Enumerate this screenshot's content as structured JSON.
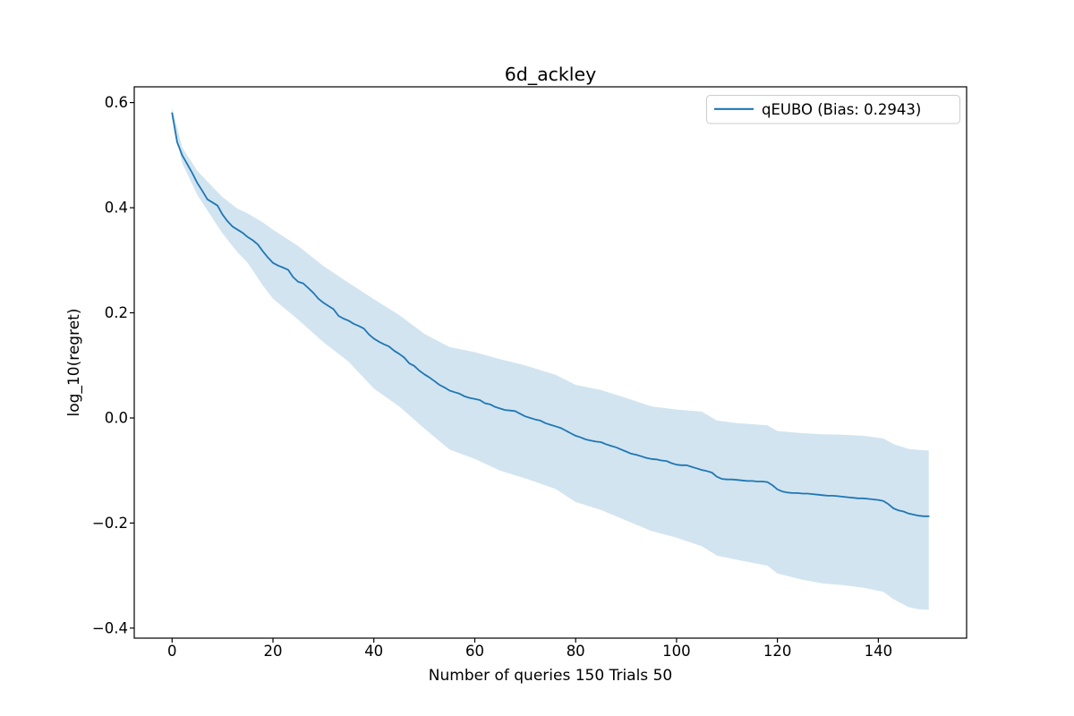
{
  "figure": {
    "title": "6d_ackley",
    "xlabel": "Number of queries 150 Trials 50",
    "ylabel": "log_10(regret)"
  },
  "legend": {
    "position": "upper right",
    "entries": [
      {
        "label": "qEUBO (Bias: 0.2943)",
        "color": "#1f77b4",
        "swatch": "line"
      }
    ]
  },
  "colors": {
    "line": "#1f77b4",
    "band": "rgba(31,119,180,0.2)",
    "frame": "#000000",
    "legend_border": "#cccccc",
    "legend_background": "rgba(255,255,255,0.8)"
  },
  "chart_data": {
    "type": "line",
    "title": "6d_ackley",
    "xlabel": "Number of queries 150 Trials 50",
    "ylabel": "log_10(regret)",
    "xlim": [
      -7.5,
      157.5
    ],
    "ylim": [
      -0.419,
      0.63
    ],
    "grid": false,
    "legend_position": "upper right",
    "xticks": {
      "values": [
        0,
        20,
        40,
        60,
        80,
        100,
        120,
        140
      ],
      "labels": [
        "0",
        "20",
        "40",
        "60",
        "80",
        "100",
        "120",
        "140"
      ]
    },
    "yticks": {
      "values": [
        0.6,
        0.4,
        0.2,
        0.0,
        -0.2,
        -0.4
      ],
      "labels": [
        "0.6",
        "0.4",
        "0.2",
        "0.0",
        "−0.2",
        "−0.4"
      ]
    },
    "series": [
      {
        "name": "qEUBO (Bias: 0.2943)",
        "color": "#1f77b4",
        "x": [
          0,
          1,
          2,
          3,
          4,
          5,
          6,
          7,
          8,
          9,
          10,
          11,
          12,
          13,
          14,
          15,
          16,
          17,
          18,
          19,
          20,
          21,
          22,
          23,
          24,
          25,
          26,
          27,
          28,
          29,
          30,
          31,
          32,
          33,
          34,
          35,
          36,
          37,
          38,
          39,
          40,
          41,
          42,
          43,
          44,
          45,
          46,
          47,
          48,
          49,
          50,
          51,
          52,
          53,
          54,
          55,
          56,
          57,
          58,
          59,
          60,
          61,
          62,
          63,
          64,
          65,
          66,
          67,
          68,
          69,
          70,
          71,
          72,
          73,
          74,
          75,
          76,
          77,
          78,
          79,
          80,
          81,
          82,
          83,
          84,
          85,
          86,
          87,
          88,
          89,
          90,
          91,
          92,
          93,
          94,
          95,
          96,
          97,
          98,
          99,
          100,
          101,
          102,
          103,
          104,
          105,
          106,
          107,
          108,
          109,
          110,
          111,
          112,
          113,
          114,
          115,
          116,
          117,
          118,
          119,
          120,
          121,
          122,
          123,
          124,
          125,
          126,
          127,
          128,
          129,
          130,
          131,
          132,
          133,
          134,
          135,
          136,
          137,
          138,
          139,
          140,
          141,
          142,
          143,
          144,
          145,
          146,
          147,
          148,
          149,
          150
        ],
        "y": [
          0.58,
          0.525,
          0.5,
          0.483,
          0.466,
          0.447,
          0.432,
          0.416,
          0.41,
          0.404,
          0.387,
          0.374,
          0.364,
          0.358,
          0.352,
          0.344,
          0.338,
          0.33,
          0.317,
          0.305,
          0.295,
          0.29,
          0.286,
          0.282,
          0.268,
          0.259,
          0.256,
          0.247,
          0.238,
          0.227,
          0.219,
          0.213,
          0.207,
          0.194,
          0.189,
          0.185,
          0.179,
          0.175,
          0.17,
          0.159,
          0.151,
          0.145,
          0.14,
          0.136,
          0.128,
          0.122,
          0.115,
          0.104,
          0.099,
          0.09,
          0.083,
          0.077,
          0.07,
          0.063,
          0.058,
          0.052,
          0.049,
          0.046,
          0.041,
          0.038,
          0.036,
          0.034,
          0.028,
          0.026,
          0.021,
          0.018,
          0.015,
          0.014,
          0.013,
          0.008,
          0.003,
          0.0,
          -0.003,
          -0.005,
          -0.01,
          -0.013,
          -0.016,
          -0.019,
          -0.024,
          -0.029,
          -0.034,
          -0.037,
          -0.041,
          -0.043,
          -0.045,
          -0.046,
          -0.05,
          -0.053,
          -0.056,
          -0.06,
          -0.064,
          -0.068,
          -0.07,
          -0.073,
          -0.076,
          -0.078,
          -0.079,
          -0.081,
          -0.082,
          -0.086,
          -0.089,
          -0.09,
          -0.09,
          -0.093,
          -0.096,
          -0.099,
          -0.101,
          -0.104,
          -0.112,
          -0.116,
          -0.117,
          -0.117,
          -0.118,
          -0.119,
          -0.12,
          -0.12,
          -0.121,
          -0.121,
          -0.122,
          -0.128,
          -0.136,
          -0.14,
          -0.142,
          -0.143,
          -0.143,
          -0.144,
          -0.144,
          -0.145,
          -0.146,
          -0.147,
          -0.148,
          -0.148,
          -0.149,
          -0.15,
          -0.151,
          -0.152,
          -0.153,
          -0.153,
          -0.154,
          -0.155,
          -0.156,
          -0.158,
          -0.164,
          -0.172,
          -0.176,
          -0.178,
          -0.182,
          -0.184,
          -0.186,
          -0.187,
          -0.187
        ],
        "band": {
          "x": [
            0,
            2,
            5,
            8,
            10,
            13,
            15,
            18,
            20,
            25,
            30,
            35,
            40,
            45,
            50,
            55,
            60,
            65,
            70,
            76,
            80,
            85,
            90,
            95,
            100,
            105,
            108,
            112,
            118,
            120,
            125,
            129,
            133,
            137,
            141,
            143,
            146,
            148,
            150
          ],
          "upper": [
            0.59,
            0.515,
            0.47,
            0.44,
            0.42,
            0.398,
            0.389,
            0.372,
            0.358,
            0.327,
            0.289,
            0.257,
            0.226,
            0.196,
            0.16,
            0.135,
            0.125,
            0.112,
            0.1,
            0.082,
            0.063,
            0.053,
            0.038,
            0.022,
            0.016,
            0.012,
            -0.005,
            -0.01,
            -0.014,
            -0.025,
            -0.029,
            -0.031,
            -0.032,
            -0.034,
            -0.039,
            -0.05,
            -0.059,
            -0.061,
            -0.062
          ],
          "lower": [
            0.57,
            0.485,
            0.424,
            0.38,
            0.351,
            0.315,
            0.295,
            0.252,
            0.227,
            0.187,
            0.144,
            0.107,
            0.056,
            0.022,
            -0.02,
            -0.06,
            -0.078,
            -0.1,
            -0.115,
            -0.135,
            -0.16,
            -0.175,
            -0.195,
            -0.215,
            -0.228,
            -0.244,
            -0.262,
            -0.27,
            -0.281,
            -0.296,
            -0.308,
            -0.315,
            -0.318,
            -0.323,
            -0.331,
            -0.345,
            -0.36,
            -0.364,
            -0.365
          ]
        }
      }
    ]
  }
}
